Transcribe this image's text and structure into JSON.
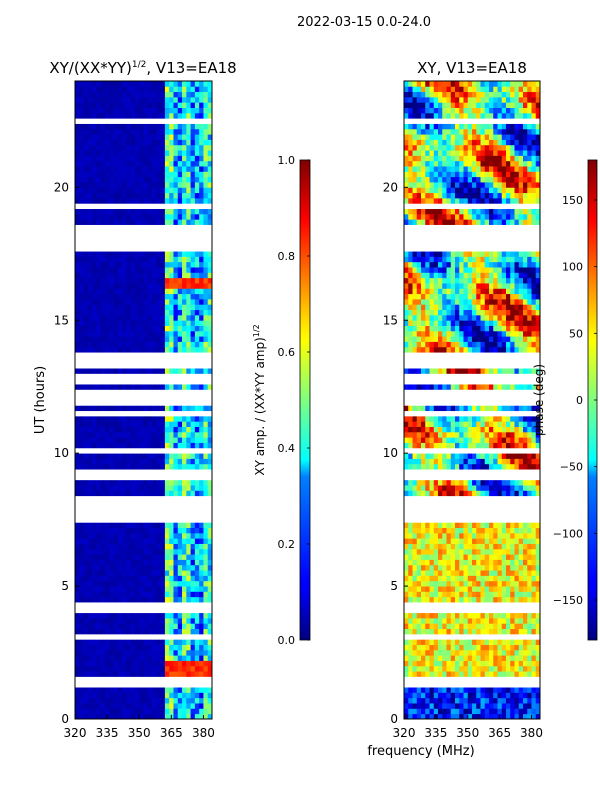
{
  "suptitle": "2022-03-15 0.0-24.0",
  "common_xlabel": "frequency (MHz)",
  "chart_data": [
    {
      "type": "heatmap",
      "title": "XY/(XX*YY)^1/2, V13=EA18",
      "title_main": "XY/(XX*YY)",
      "title_exp": "1/2",
      "title_tail": ", V13=EA18",
      "xlabel": "frequency (MHz)",
      "ylabel": "UT (hours)",
      "xlim": [
        320,
        384
      ],
      "ylim": [
        0,
        24
      ],
      "xticks": [
        320,
        335,
        350,
        365,
        380
      ],
      "yticks": [
        0,
        5,
        10,
        15,
        20
      ],
      "colorbar": {
        "label": "XY amp. / (XX*YY amp)^1/2",
        "label_main": "XY amp. / (XX*YY amp)",
        "label_exp": "1/2",
        "range": [
          0.0,
          1.0
        ],
        "ticks": [
          "0.0",
          "0.2",
          "0.4",
          "0.6",
          "0.8",
          "1.0"
        ],
        "colormap": "jet"
      },
      "description": "Amplitude near 0 across 320-361 MHz; elevated vertical bands in 362-384 MHz; peaks near 16.3 h and 1.9 h"
    },
    {
      "type": "heatmap",
      "title": "XY, V13=EA18",
      "xlabel": "frequency (MHz)",
      "ylabel": "",
      "xlim": [
        320,
        384
      ],
      "ylim": [
        0,
        24
      ],
      "xticks": [
        320,
        335,
        350,
        365,
        380
      ],
      "yticks": [
        0,
        5,
        10,
        15,
        20
      ],
      "colorbar": {
        "label": "phase (deg)",
        "range": [
          -180,
          180
        ],
        "ticks": [
          "−150",
          "−100",
          "−50",
          "0",
          "50",
          "100",
          "150"
        ],
        "tick_values": [
          -150,
          -100,
          -50,
          0,
          50,
          100,
          150
        ],
        "colormap": "jet"
      },
      "description": "Phase varies strongly with time and frequency"
    }
  ]
}
